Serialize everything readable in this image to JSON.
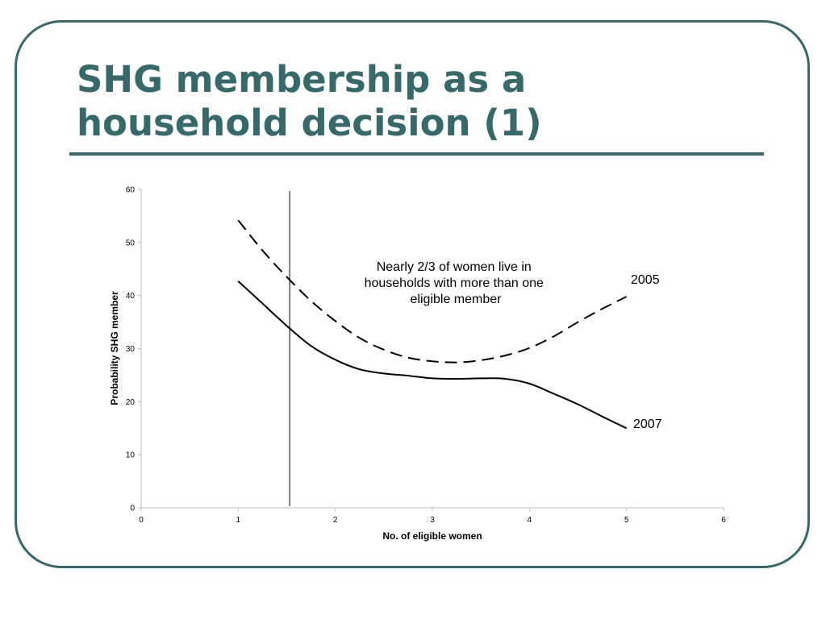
{
  "title": {
    "line1": "SHG membership as a",
    "line2": "household decision (1)"
  },
  "colors": {
    "accent": "#35696a",
    "line": "#000000"
  },
  "chart_data": {
    "type": "line",
    "xlabel": "No. of eligible women",
    "ylabel": "Probability SHG member",
    "xlim": [
      0,
      6
    ],
    "ylim": [
      0,
      60
    ],
    "x_ticks": [
      "0",
      "1",
      "2",
      "3",
      "4",
      "5",
      "6"
    ],
    "y_ticks": [
      "0",
      "10",
      "20",
      "30",
      "40",
      "50",
      "60"
    ],
    "grid": false,
    "legend": "none",
    "reference_line_x": 1.53,
    "annotation": "Nearly 2/3 of women live in households with more than one eligible member",
    "series": [
      {
        "name": "2005",
        "style": "dashed",
        "x": [
          1,
          1.25,
          1.5,
          1.75,
          2,
          2.25,
          2.5,
          2.75,
          3,
          3.25,
          3.5,
          3.75,
          4,
          4.25,
          4.5,
          4.75,
          5
        ],
        "y": [
          54.2,
          48.5,
          43.5,
          39.0,
          35.2,
          32.0,
          29.8,
          28.3,
          27.6,
          27.4,
          27.8,
          28.7,
          30.1,
          32.3,
          35.0,
          37.5,
          39.8
        ]
      },
      {
        "name": "2007",
        "style": "solid",
        "x": [
          1,
          1.25,
          1.5,
          1.75,
          2,
          2.25,
          2.5,
          2.75,
          3,
          3.25,
          3.5,
          3.75,
          4,
          4.25,
          4.5,
          4.75,
          5
        ],
        "y": [
          42.7,
          38.5,
          34.3,
          30.5,
          27.9,
          26.1,
          25.3,
          24.9,
          24.4,
          24.3,
          24.4,
          24.3,
          23.4,
          21.5,
          19.5,
          17.2,
          15.0
        ]
      }
    ]
  }
}
